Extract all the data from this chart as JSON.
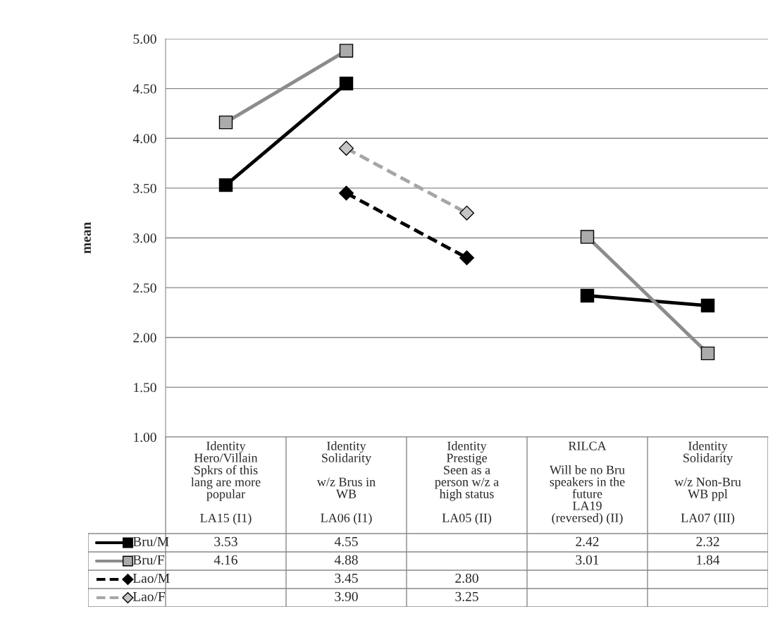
{
  "chart_data": {
    "type": "line",
    "ylabel": "mean",
    "categories": [
      "Identity\nHero/Villain\nSpkrs of this\nlang are more\npopular\n\nLA15 (I1)",
      "Identity\nSolidarity\n\nw/z Brus in\nWB\n\nLA06 (I1)",
      "Identity\nPrestige\nSeen as a\nperson w/z a\nhigh status\n\nLA05 (II)",
      "RILCA\n\nWill be no Bru\nspeakers in the\nfuture\nLA19\n(reversed) (II)",
      "Identity\nSolidarity\n\nw/z Non-Bru\nWB ppl\n\nLA07 (III)"
    ],
    "series": [
      {
        "name": "Bru/M",
        "color": "#000000",
        "values": [
          3.53,
          4.55,
          null,
          2.42,
          2.32
        ],
        "value_labels": [
          "3.53",
          "4.55",
          null,
          "2.42",
          "2.32"
        ],
        "marker": "square",
        "line_style": "solid"
      },
      {
        "name": "Bru/F",
        "color": "#8c8c8c",
        "values": [
          4.16,
          4.88,
          null,
          3.01,
          1.84
        ],
        "value_labels": [
          "4.16",
          "4.88",
          null,
          "3.01",
          "1.84"
        ],
        "marker": "square",
        "line_style": "solid"
      },
      {
        "name": "Lao/M",
        "color": "#000000",
        "values": [
          null,
          3.45,
          2.8,
          null,
          null
        ],
        "value_labels": [
          null,
          "3.45",
          "2.80",
          null,
          null
        ],
        "marker": "diamond",
        "line_style": "dashed"
      },
      {
        "name": "Lao/F",
        "color": "#a6a6a6",
        "values": [
          null,
          3.9,
          3.25,
          null,
          null
        ],
        "value_labels": [
          null,
          "3.90",
          "3.25",
          null,
          null
        ],
        "marker": "diamond",
        "line_style": "dashed"
      }
    ],
    "ylim": [
      1,
      5
    ],
    "yticks": [
      {
        "value": 1,
        "label": "1.00"
      },
      {
        "value": 1.5,
        "label": "1.50"
      },
      {
        "value": 2,
        "label": "2.00"
      },
      {
        "value": 2.5,
        "label": "2.50"
      },
      {
        "value": 3,
        "label": "3.00"
      },
      {
        "value": 3.5,
        "label": "3.50"
      },
      {
        "value": 4,
        "label": "4.00"
      },
      {
        "value": 4.5,
        "label": "4.50"
      },
      {
        "value": 5,
        "label": "5.00"
      }
    ],
    "grid": "y",
    "legend": "bottom"
  }
}
